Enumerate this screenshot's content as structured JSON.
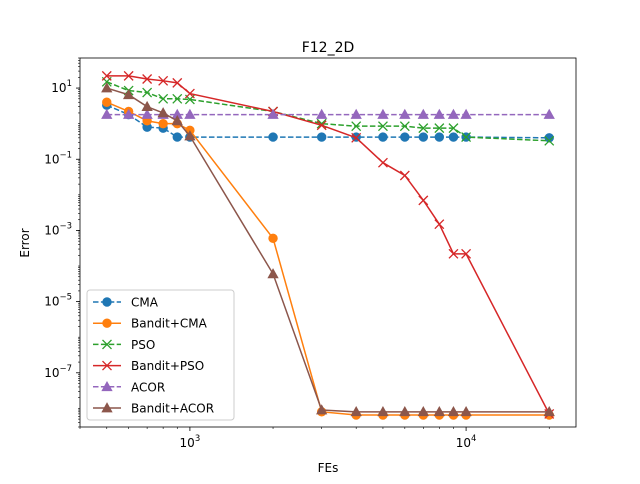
{
  "chart_data": {
    "type": "line",
    "title": "F12_2D",
    "xlabel": "FEs",
    "ylabel": "Error",
    "xscale": "log",
    "yscale": "log",
    "xlim": [
      400,
      25000
    ],
    "ylim": [
      3e-09,
      70
    ],
    "x_ticks": [
      {
        "value": 1000,
        "base": "10",
        "exp": "3"
      },
      {
        "value": 10000,
        "base": "10",
        "exp": "4"
      }
    ],
    "y_ticks": [
      {
        "value": 1e-07,
        "base": "10",
        "exp": "−7"
      },
      {
        "value": 1e-05,
        "base": "10",
        "exp": "−5"
      },
      {
        "value": 0.001,
        "base": "10",
        "exp": "−3"
      },
      {
        "value": 0.1,
        "base": "10",
        "exp": "−1"
      },
      {
        "value": 10,
        "base": "10",
        "exp": "1"
      }
    ],
    "grid": false,
    "legend_position": "lower-left",
    "x": [
      500,
      600,
      700,
      800,
      900,
      1000,
      2000,
      3000,
      4000,
      5000,
      6000,
      7000,
      8000,
      9000,
      10000,
      20000
    ],
    "series": [
      {
        "name": "CMA",
        "color": "#1f77b4",
        "linestyle": "dashed",
        "marker": "circle",
        "values": [
          3.3,
          1.8,
          0.8,
          0.75,
          0.42,
          0.42,
          0.42,
          0.42,
          0.42,
          0.42,
          0.42,
          0.42,
          0.42,
          0.42,
          0.42,
          0.4
        ]
      },
      {
        "name": "Bandit+CMA",
        "color": "#ff7f0e",
        "linestyle": "solid",
        "marker": "circle",
        "values": [
          4.0,
          2.2,
          1.2,
          1.0,
          1.0,
          0.65,
          0.0006,
          8e-09,
          6.5e-09,
          6.5e-09,
          6.5e-09,
          6.5e-09,
          6.5e-09,
          6.5e-09,
          6.5e-09,
          6.5e-09
        ]
      },
      {
        "name": "PSO",
        "color": "#2ca02c",
        "linestyle": "dashed",
        "marker": "x",
        "values": [
          15,
          8.5,
          7.5,
          5.0,
          5.0,
          4.8,
          2.2,
          1.0,
          0.85,
          0.85,
          0.85,
          0.75,
          0.75,
          0.75,
          0.42,
          0.33
        ]
      },
      {
        "name": "Bandit+PSO",
        "color": "#d62728",
        "linestyle": "solid",
        "marker": "x",
        "values": [
          22,
          22,
          18,
          16,
          14,
          7.0,
          2.2,
          0.9,
          0.4,
          0.08,
          0.035,
          0.007,
          0.0015,
          0.00022,
          0.00022,
          7e-09
        ]
      },
      {
        "name": "ACOR",
        "color": "#9467bd",
        "linestyle": "dashed",
        "marker": "triangle",
        "values": [
          1.8,
          1.8,
          1.8,
          1.8,
          1.8,
          1.8,
          1.8,
          1.8,
          1.8,
          1.8,
          1.8,
          1.8,
          1.8,
          1.8,
          1.8,
          1.8
        ]
      },
      {
        "name": "Bandit+ACOR",
        "color": "#8c564b",
        "linestyle": "solid",
        "marker": "triangle",
        "values": [
          10,
          6.5,
          3.0,
          2.0,
          1.2,
          0.45,
          6e-05,
          9e-09,
          8e-09,
          8e-09,
          8e-09,
          8e-09,
          8e-09,
          8e-09,
          8e-09,
          8e-09
        ]
      }
    ]
  }
}
